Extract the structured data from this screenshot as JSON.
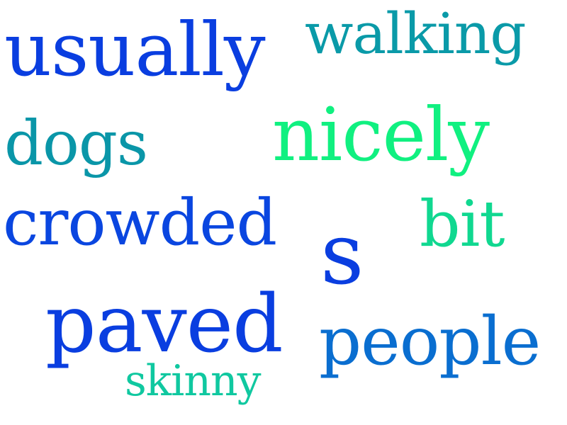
{
  "words": [
    {
      "text": "usually",
      "color": "#0a3ee0"
    },
    {
      "text": "walking",
      "color": "#0a9aa8"
    },
    {
      "text": "dogs",
      "color": "#0a96a8"
    },
    {
      "text": "nicely",
      "color": "#10f080"
    },
    {
      "text": "crowded",
      "color": "#0a46e0"
    },
    {
      "text": "bit",
      "color": "#10d890"
    },
    {
      "text": "s",
      "color": "#0a3ee0"
    },
    {
      "text": "paved",
      "color": "#0a3ee0"
    },
    {
      "text": "people",
      "color": "#0a6ed0"
    },
    {
      "text": "skinny",
      "color": "#10c8a0"
    }
  ]
}
